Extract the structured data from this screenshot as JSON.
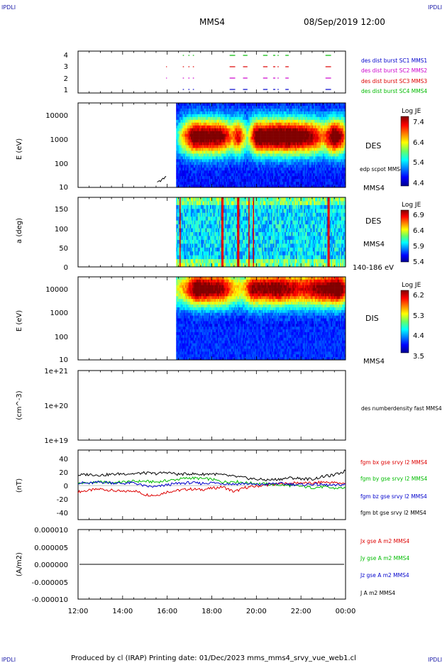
{
  "corner_label": "IPDLI",
  "header": {
    "spacecraft": "MMS4",
    "datetime": "08/Sep/2019 12:00"
  },
  "footer": "Produced by cl (IRAP)   Printing date: 01/Dec/2023   mms_mms4_srvy_vue_web1.cl",
  "time_axis": {
    "ticks": [
      "12:00",
      "14:00",
      "16:00",
      "18:00",
      "20:00",
      "22:00",
      "00:00"
    ],
    "range_hours": [
      12,
      24
    ]
  },
  "chart_data": [
    {
      "type": "scatter",
      "panel": "burst",
      "yticks": [
        "1",
        "2",
        "3",
        "4"
      ],
      "series": [
        {
          "name": "des dist burst SC1 MMS1",
          "color": "#0000cc",
          "row": 1,
          "segments_hours": [
            [
              16.7,
              16.75
            ],
            [
              16.95,
              17.0
            ],
            [
              17.15,
              17.2
            ],
            [
              18.8,
              19.05
            ],
            [
              19.4,
              19.6
            ],
            [
              20.3,
              20.5
            ],
            [
              20.75,
              20.85
            ],
            [
              20.95,
              21.0
            ],
            [
              21.3,
              21.45
            ],
            [
              23.1,
              23.35
            ]
          ]
        },
        {
          "name": "des dist burst SC2 MMS2",
          "color": "#cc00cc",
          "row": 2,
          "segments_hours": [
            [
              15.95,
              15.97
            ],
            [
              16.7,
              16.75
            ],
            [
              16.95,
              17.0
            ],
            [
              17.15,
              17.2
            ],
            [
              18.8,
              19.05
            ],
            [
              19.4,
              19.6
            ],
            [
              20.3,
              20.5
            ],
            [
              20.75,
              20.85
            ],
            [
              20.95,
              21.0
            ],
            [
              21.3,
              21.45
            ],
            [
              23.1,
              23.35
            ]
          ]
        },
        {
          "name": "des dist burst SC3 MMS3",
          "color": "#dd0000",
          "row": 3,
          "segments_hours": [
            [
              15.95,
              15.97
            ],
            [
              16.7,
              16.75
            ],
            [
              16.95,
              17.0
            ],
            [
              17.15,
              17.2
            ],
            [
              18.8,
              19.05
            ],
            [
              19.4,
              19.6
            ],
            [
              20.3,
              20.5
            ],
            [
              20.75,
              20.85
            ],
            [
              20.95,
              21.0
            ],
            [
              21.3,
              21.45
            ],
            [
              23.1,
              23.35
            ]
          ]
        },
        {
          "name": "des dist burst SC4 MMS4",
          "color": "#00bb00",
          "row": 4,
          "segments_hours": [
            [
              16.7,
              16.75
            ],
            [
              16.95,
              17.0
            ],
            [
              17.15,
              17.2
            ],
            [
              18.8,
              19.05
            ],
            [
              19.4,
              19.6
            ],
            [
              20.3,
              20.5
            ],
            [
              20.75,
              20.85
            ],
            [
              20.95,
              21.0
            ],
            [
              21.3,
              21.45
            ],
            [
              23.1,
              23.35
            ]
          ]
        }
      ]
    },
    {
      "type": "heatmap",
      "panel": "des_energy",
      "ylabel": "E (eV)",
      "yticks": [
        "10",
        "100",
        "1000",
        "10000"
      ],
      "ylim_log10": [
        1,
        4.5
      ],
      "label": "DES",
      "spacecraft": "MMS4",
      "overlay_label": "edp scpot MMS4",
      "colorbar": {
        "title": "Log JE",
        "ticks": [
          "7.4",
          "6.4",
          "5.4",
          "4.4"
        ],
        "range": [
          4.4,
          7.4
        ]
      },
      "data_start_hours": 16.4,
      "peak_log10E": 3.1,
      "profile_hours": [
        [
          16.4,
          0.2
        ],
        [
          16.7,
          0.55
        ],
        [
          17.2,
          0.95
        ],
        [
          18.4,
          0.9
        ],
        [
          18.9,
          0.6
        ],
        [
          19.2,
          0.8
        ],
        [
          19.6,
          0.35
        ],
        [
          20.0,
          0.95
        ],
        [
          21.5,
          1.0
        ],
        [
          22.5,
          0.85
        ],
        [
          23.0,
          0.6
        ],
        [
          23.5,
          1.0
        ],
        [
          23.9,
          0.75
        ],
        [
          24.0,
          0.5
        ]
      ],
      "scpot_overlay": {
        "hours": [
          15.55,
          15.6,
          15.65,
          15.7,
          15.75,
          15.8,
          15.85,
          15.9,
          15.95
        ],
        "log10E": [
          1.22,
          1.25,
          1.28,
          1.24,
          1.32,
          1.38,
          1.35,
          1.43,
          1.46
        ]
      }
    },
    {
      "type": "heatmap",
      "panel": "des_pitch",
      "ylabel": "a (deg)",
      "yticks": [
        "0",
        "50",
        "100",
        "150"
      ],
      "ylim": [
        0,
        180
      ],
      "label": "DES",
      "spacecraft": "MMS4",
      "energy_band": "140-186 eV",
      "colorbar": {
        "title": "Log JE",
        "ticks": [
          "6.9",
          "6.4",
          "5.9",
          "5.4"
        ],
        "range": [
          5.4,
          6.9
        ]
      },
      "data_start_hours": 16.4,
      "bright_stripes_hours": [
        [
          16.55,
          16.6
        ],
        [
          18.45,
          18.55
        ],
        [
          19.15,
          19.25
        ],
        [
          19.65,
          19.7
        ],
        [
          19.85,
          19.9
        ],
        [
          23.2,
          23.3
        ]
      ]
    },
    {
      "type": "heatmap",
      "panel": "dis_energy",
      "ylabel": "E (eV)",
      "yticks": [
        "10",
        "100",
        "1000",
        "10000"
      ],
      "ylim_log10": [
        1,
        4.5
      ],
      "label": "DIS",
      "spacecraft": "MMS4",
      "colorbar": {
        "title": "Log JE",
        "ticks": [
          "6.2",
          "5.3",
          "4.4",
          "3.5"
        ],
        "range": [
          3.5,
          6.2
        ]
      },
      "data_start_hours": 16.4,
      "peak_log10E": 4.0,
      "profile_hours": [
        [
          16.4,
          0.45
        ],
        [
          16.8,
          0.6
        ],
        [
          17.3,
          0.95
        ],
        [
          18.5,
          0.85
        ],
        [
          19.0,
          0.55
        ],
        [
          19.4,
          0.5
        ],
        [
          19.8,
          0.85
        ],
        [
          21.0,
          0.9
        ],
        [
          22.0,
          0.75
        ],
        [
          23.0,
          0.9
        ],
        [
          23.7,
          1.0
        ],
        [
          24.0,
          0.7
        ]
      ]
    },
    {
      "type": "line",
      "panel": "density",
      "ylabel": "(cm^-3)",
      "yticks": [
        "1e+19",
        "1e+20",
        "1e+21"
      ],
      "series": [
        {
          "name": "des numberdensity fast MMS4",
          "color": "#000000",
          "points": []
        }
      ]
    },
    {
      "type": "line",
      "panel": "magnetic_field",
      "ylabel": "(nT)",
      "yticks": [
        "-40",
        "-20",
        "0",
        "20",
        "40"
      ],
      "ylim": [
        -50,
        50
      ],
      "series": [
        {
          "name": "fgm bx gse srvy l2 MMS4",
          "color": "#dd0000",
          "hours": [
            12.0,
            12.5,
            13.0,
            13.5,
            14.0,
            14.5,
            15.0,
            15.5,
            16.0,
            16.5,
            17.0,
            17.5,
            18.0,
            18.5,
            19.0,
            19.5,
            20.0,
            20.5,
            21.0,
            21.5,
            22.0,
            22.5,
            23.0,
            23.5,
            24.0
          ],
          "values": [
            -10,
            -8,
            -6,
            -8,
            -10,
            -8,
            -14,
            -15,
            -10,
            -8,
            -6,
            -7,
            -5,
            -3,
            -10,
            -4,
            -2,
            0,
            1,
            2,
            3,
            2,
            4,
            3,
            2
          ]
        },
        {
          "name": "fgm by gse srvy l2 MMS4",
          "color": "#00bb00",
          "hours": [
            12.0,
            12.5,
            13.0,
            13.5,
            14.0,
            14.5,
            15.0,
            15.5,
            16.0,
            16.5,
            17.0,
            17.5,
            18.0,
            18.5,
            19.0,
            19.5,
            20.0,
            20.5,
            21.0,
            21.5,
            22.0,
            22.5,
            23.0,
            23.5,
            24.0
          ],
          "values": [
            2,
            3,
            4,
            3,
            4,
            5,
            5,
            4,
            6,
            8,
            10,
            9,
            8,
            4,
            5,
            3,
            2,
            1,
            0,
            -1,
            -2,
            -4,
            -3,
            -5,
            -4
          ]
        },
        {
          "name": "fgm bz gse srvy l2 MMS4",
          "color": "#0000cc",
          "hours": [
            12.0,
            12.5,
            13.0,
            13.5,
            14.0,
            14.5,
            15.0,
            15.5,
            16.0,
            16.5,
            17.0,
            17.5,
            18.0,
            18.5,
            19.0,
            19.5,
            20.0,
            20.5,
            21.0,
            21.5,
            22.0,
            22.5,
            23.0,
            23.5,
            24.0
          ],
          "values": [
            3,
            2,
            4,
            3,
            2,
            3,
            -2,
            -3,
            0,
            2,
            3,
            2,
            3,
            2,
            1,
            2,
            0,
            1,
            2,
            1,
            0,
            1,
            0,
            -1,
            1
          ]
        },
        {
          "name": "fgm bt gse srvy l2 MMS4",
          "color": "#000000",
          "hours": [
            12.0,
            12.5,
            13.0,
            13.5,
            14.0,
            14.5,
            15.0,
            15.5,
            16.0,
            16.5,
            17.0,
            17.5,
            18.0,
            18.5,
            19.0,
            19.5,
            20.0,
            20.5,
            21.0,
            21.5,
            22.0,
            22.5,
            23.0,
            23.5,
            24.0
          ],
          "values": [
            14,
            15,
            14,
            15,
            16,
            16,
            17,
            16,
            18,
            15,
            16,
            15,
            16,
            14,
            12,
            10,
            8,
            7,
            8,
            10,
            9,
            8,
            12,
            14,
            20
          ]
        }
      ]
    },
    {
      "type": "line",
      "panel": "current_density",
      "ylabel": "(A/m2)",
      "yticks": [
        "-0.000010",
        "-0.000005",
        "0.000000",
        "0.000005",
        "0.000010"
      ],
      "ylim": [
        -1e-05,
        1e-05
      ],
      "series": [
        {
          "name": "Jx gse A m2 MMS4",
          "color": "#dd0000",
          "value": 0
        },
        {
          "name": "Jy gse A m2 MMS4",
          "color": "#00bb00",
          "value": 0
        },
        {
          "name": "Jz gse A m2 MMS4",
          "color": "#0000cc",
          "value": 0
        },
        {
          "name": "J A m2 MMS4",
          "color": "#000000",
          "value": 0
        }
      ]
    }
  ]
}
